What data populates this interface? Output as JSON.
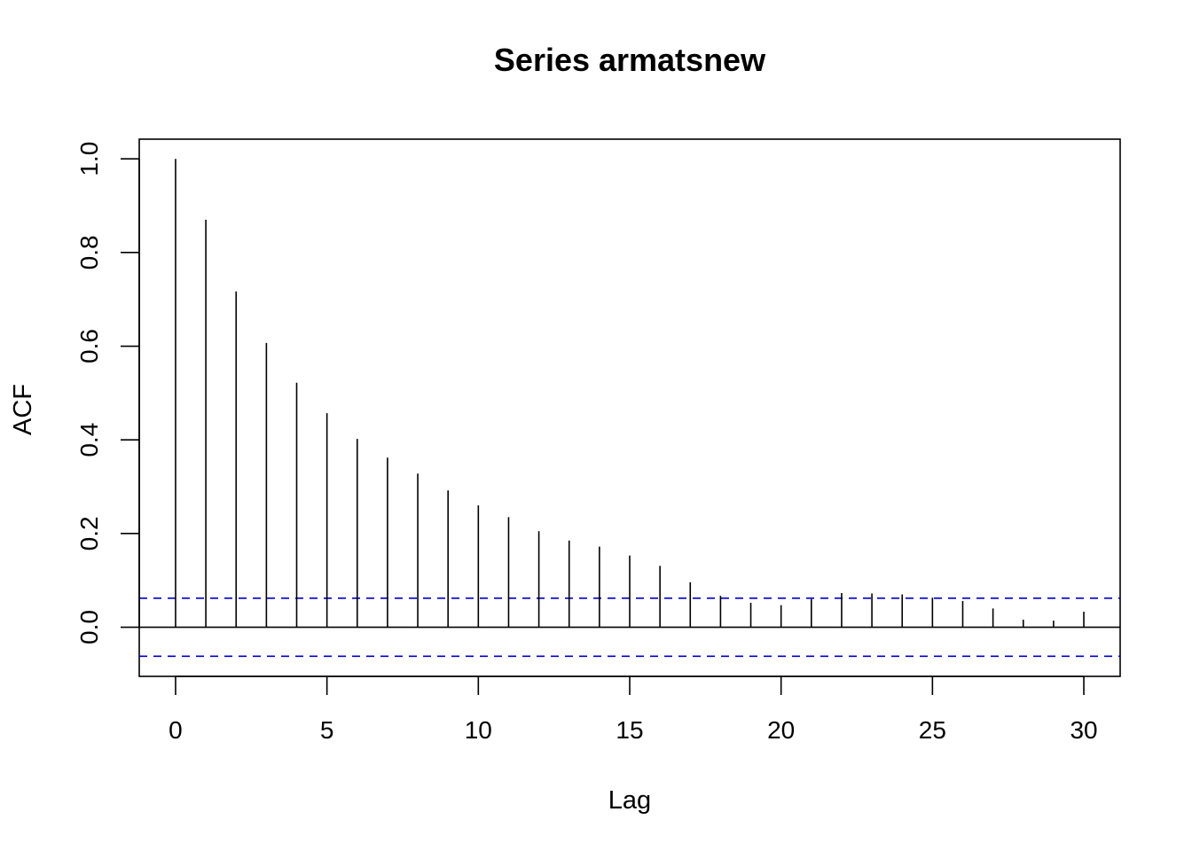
{
  "chart_data": {
    "type": "bar",
    "subtype": "acf-spike",
    "title": "Series  armatsnew",
    "xlabel": "Lag",
    "ylabel": "ACF",
    "xlim": [
      -1.2,
      31.2
    ],
    "ylim": [
      -0.105,
      1.042
    ],
    "xticks": [
      0,
      5,
      10,
      15,
      20,
      25,
      30
    ],
    "xtick_labels": [
      "0",
      "5",
      "10",
      "15",
      "20",
      "25",
      "30"
    ],
    "yticks": [
      0.0,
      0.2,
      0.4,
      0.6,
      0.8,
      1.0
    ],
    "ytick_labels": [
      "0.0",
      "0.2",
      "0.4",
      "0.6",
      "0.8",
      "1.0"
    ],
    "lags": [
      0,
      1,
      2,
      3,
      4,
      5,
      6,
      7,
      8,
      9,
      10,
      11,
      12,
      13,
      14,
      15,
      16,
      17,
      18,
      19,
      20,
      21,
      22,
      23,
      24,
      25,
      26,
      27,
      28,
      29,
      30
    ],
    "values": [
      1.0,
      0.87,
      0.717,
      0.607,
      0.522,
      0.457,
      0.402,
      0.362,
      0.328,
      0.292,
      0.26,
      0.235,
      0.205,
      0.185,
      0.172,
      0.153,
      0.131,
      0.096,
      0.067,
      0.052,
      0.047,
      0.06,
      0.073,
      0.072,
      0.07,
      0.063,
      0.056,
      0.04,
      0.016,
      0.014,
      0.033
    ],
    "confidence_bound": 0.062,
    "zero_line": true,
    "grid": false,
    "colors": {
      "spikes": "#000000",
      "confidence_lines": "#0000cc",
      "axes": "#000000"
    }
  }
}
